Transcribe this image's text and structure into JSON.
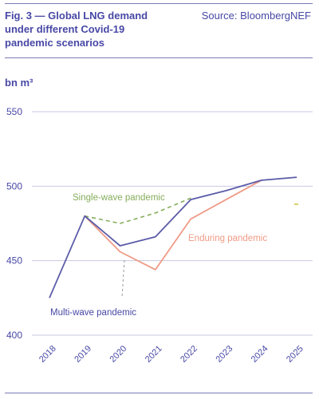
{
  "header": {
    "title": "Fig. 3 — Global LNG demand\nunder different Covid-19\npandemic scenarios",
    "source": "Source: BloombergNEF"
  },
  "chart_data": {
    "type": "line",
    "ylabel": "bn m³",
    "ylim": [
      400,
      550
    ],
    "yticks": [
      "550",
      "500",
      "450",
      "400"
    ],
    "x": [
      "2018",
      "2019",
      "2020",
      "2021",
      "2022",
      "2023",
      "2024",
      "2025"
    ],
    "series": [
      {
        "name": "Multi-wave pandemic",
        "color": "#5b5ba8",
        "style": "solid",
        "values": [
          425,
          480,
          460,
          466,
          491,
          497,
          504,
          506
        ]
      },
      {
        "name": "Enduring pandemic",
        "color": "#ef9a86",
        "style": "solid",
        "values": [
          null,
          480,
          456,
          444,
          478,
          491,
          504,
          null
        ]
      },
      {
        "name": "Single-wave pandemic",
        "color": "#86ad5c",
        "style": "dashed",
        "values": [
          null,
          480,
          475,
          482,
          492,
          null,
          null,
          null
        ]
      }
    ],
    "annotations": {
      "single_wave": "Single-wave pandemic",
      "enduring": "Enduring pandemic",
      "multi_wave": "Multi-wave pandemic"
    },
    "grid": true
  }
}
